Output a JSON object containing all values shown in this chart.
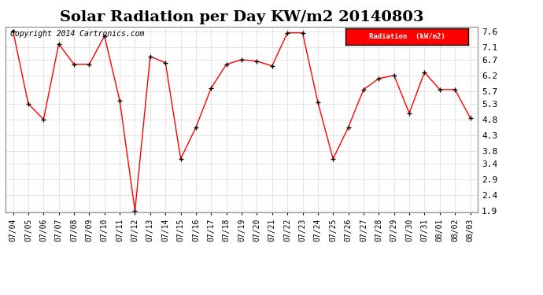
{
  "title": "Solar Radiation per Day KW/m2 20140803",
  "copyright": "Copyright 2014 Cartronics.com",
  "legend_label": "Radiation  (kW/m2)",
  "dates": [
    "07/04",
    "07/05",
    "07/06",
    "07/07",
    "07/08",
    "07/09",
    "07/10",
    "07/11",
    "07/12",
    "07/13",
    "07/14",
    "07/15",
    "07/16",
    "07/17",
    "07/18",
    "07/19",
    "07/20",
    "07/21",
    "07/22",
    "07/23",
    "07/24",
    "07/25",
    "07/26",
    "07/27",
    "07/28",
    "07/29",
    "07/30",
    "07/31",
    "08/01",
    "08/02",
    "08/03"
  ],
  "values": [
    7.6,
    5.3,
    4.8,
    7.2,
    6.55,
    6.55,
    7.45,
    5.4,
    1.9,
    6.8,
    6.6,
    3.55,
    4.55,
    5.8,
    6.55,
    6.7,
    6.65,
    6.5,
    7.55,
    7.55,
    5.35,
    3.55,
    4.55,
    5.75,
    6.1,
    6.2,
    5.0,
    6.3,
    5.75,
    5.75,
    4.85
  ],
  "line_color": "#FF0000",
  "marker_color": "#000000",
  "bg_color": "#FFFFFF",
  "grid_color": "#AAAAAA",
  "legend_bg": "#FF0000",
  "legend_text_color": "#FFFFFF",
  "ylim_min": 1.9,
  "ylim_max": 7.6,
  "yticks": [
    1.9,
    2.4,
    2.9,
    3.4,
    3.8,
    4.3,
    4.8,
    5.3,
    5.7,
    6.2,
    6.7,
    7.1,
    7.6
  ],
  "title_fontsize": 14,
  "tick_fontsize": 7,
  "copyright_fontsize": 7
}
